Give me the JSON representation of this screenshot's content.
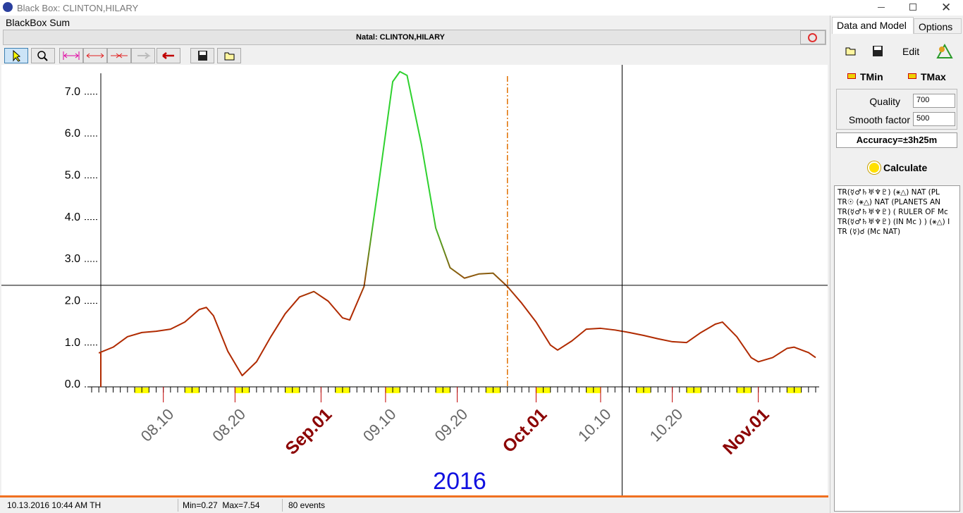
{
  "window": {
    "title": "Black Box: CLINTON,HILARY"
  },
  "panel": {
    "title": "BlackBox Sum",
    "natal": "Natal: CLINTON,HILARY"
  },
  "chart_data": {
    "type": "line",
    "x": [
      "2016-08-01",
      "2016-08-03",
      "2016-08-05",
      "2016-08-07",
      "2016-08-09",
      "2016-08-11",
      "2016-08-13",
      "2016-08-15",
      "2016-08-16",
      "2016-08-17",
      "2016-08-19",
      "2016-08-21",
      "2016-08-23",
      "2016-08-25",
      "2016-08-27",
      "2016-08-29",
      "2016-08-31",
      "2016-09-02",
      "2016-09-04",
      "2016-09-05",
      "2016-09-07",
      "2016-09-09",
      "2016-09-11",
      "2016-09-12",
      "2016-09-13",
      "2016-09-15",
      "2016-09-17",
      "2016-09-19",
      "2016-09-21",
      "2016-09-23",
      "2016-09-25",
      "2016-09-27",
      "2016-09-29",
      "2016-10-01",
      "2016-10-03",
      "2016-10-04",
      "2016-10-06",
      "2016-10-08",
      "2016-10-10",
      "2016-10-12",
      "2016-10-14",
      "2016-10-16",
      "2016-10-18",
      "2016-10-20",
      "2016-10-22",
      "2016-10-24",
      "2016-10-26",
      "2016-10-27",
      "2016-10-29",
      "2016-10-31",
      "2016-11-01",
      "2016-11-03",
      "2016-11-05",
      "2016-11-06",
      "2016-11-08",
      "2016-11-09"
    ],
    "values": [
      0.81,
      0.95,
      1.2,
      1.3,
      1.33,
      1.38,
      1.55,
      1.85,
      1.9,
      1.7,
      0.85,
      0.27,
      0.6,
      1.2,
      1.75,
      2.15,
      2.28,
      2.05,
      1.65,
      1.6,
      2.4,
      4.8,
      7.3,
      7.54,
      7.45,
      5.8,
      3.8,
      2.85,
      2.6,
      2.7,
      2.72,
      2.4,
      2.0,
      1.55,
      1.0,
      0.88,
      1.1,
      1.38,
      1.4,
      1.36,
      1.3,
      1.23,
      1.15,
      1.08,
      1.06,
      1.3,
      1.5,
      1.55,
      1.2,
      0.7,
      0.6,
      0.7,
      0.92,
      0.95,
      0.82,
      0.7
    ],
    "colors": [
      "#2ed12e",
      "#b02a00"
    ],
    "xlim": [
      "2016-07-31",
      "2016-11-09"
    ],
    "xticks": [
      {
        "value": "2016-08-10",
        "label": "08.10"
      },
      {
        "value": "2016-08-20",
        "label": "08.20"
      },
      {
        "value": "2016-09-01",
        "label": "Sep.01"
      },
      {
        "value": "2016-09-10",
        "label": "09.10"
      },
      {
        "value": "2016-09-20",
        "label": "09.20"
      },
      {
        "value": "2016-10-01",
        "label": "Oct.01"
      },
      {
        "value": "2016-10-10",
        "label": "10.10"
      },
      {
        "value": "2016-10-20",
        "label": "10.20"
      },
      {
        "value": "2016-11-01",
        "label": "Nov.01"
      }
    ],
    "ylim": [
      0,
      7.5
    ],
    "yticks": [
      {
        "value": 0,
        "label": "0.0"
      },
      {
        "value": 1,
        "label": "1.0"
      },
      {
        "value": 2,
        "label": "2.0"
      },
      {
        "value": 3,
        "label": "3.0"
      },
      {
        "value": 4,
        "label": "4.0"
      },
      {
        "value": 5,
        "label": "5.0"
      },
      {
        "value": 6,
        "label": "6.0"
      },
      {
        "value": 7,
        "label": "7.0"
      }
    ],
    "year_label": "2016",
    "marker_x": "2016-09-27",
    "cursor": {
      "x": "2016-10-13",
      "y": 2.43
    }
  },
  "status": {
    "datetime": "10.13.2016 10:44 AM TH",
    "minmax": "Min=0.27  Max=7.54",
    "events": "80 events"
  },
  "sidebar": {
    "tabs": [
      "Data and Model",
      "Options"
    ],
    "edit": "Edit",
    "tmin": "TMin",
    "tmax": "TMax",
    "quality_label": "Quality",
    "quality": 700,
    "smooth_label": "Smooth factor",
    "smooth": 500,
    "accuracy": "Accuracy=±3h25m",
    "calculate": "Calculate",
    "list": [
      "TR(☿♂♄♅♆♇) (⚹△)  NAT (PL",
      "TR☉ (⚹△)  NAT (PLANETS AN",
      "TR(☿♂♄♅♆♇) ( RULER OF Mc",
      "TR(☿♂♄♅♆♇) (IN Mc ) ) (⚹△)  I",
      "TR (☿)☌ (Mc NAT)"
    ]
  }
}
